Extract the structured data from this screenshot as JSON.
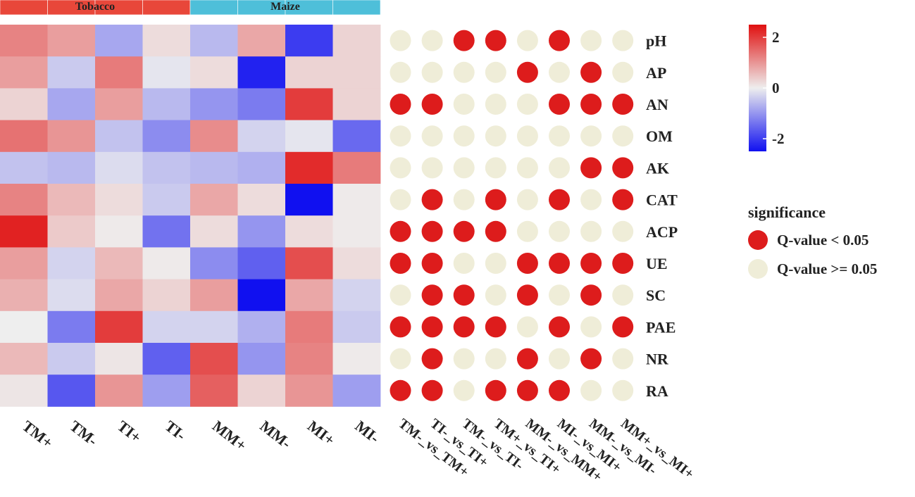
{
  "chart_data": {
    "type": "heatmap",
    "groups": [
      {
        "name": "Tobacco",
        "color": "#e8473a",
        "span": [
          0,
          4
        ]
      },
      {
        "name": "Maize",
        "color": "#4ebfd9",
        "span": [
          4,
          8
        ]
      }
    ],
    "columns": [
      "TM+",
      "TM-",
      "TI+",
      "TI-",
      "MM+",
      "MM-",
      "MI+",
      "MI-"
    ],
    "rows": [
      "pH",
      "AP",
      "AN",
      "OM",
      "AK",
      "CAT",
      "ACP",
      "UE",
      "SC",
      "PAE",
      "NR",
      "RA"
    ],
    "values": [
      [
        1.2,
        0.9,
        -0.8,
        0.2,
        -0.6,
        0.8,
        -2.0,
        0.3
      ],
      [
        0.9,
        -0.4,
        1.3,
        -0.1,
        0.2,
        -2.3,
        0.3,
        0.3
      ],
      [
        0.3,
        -0.8,
        0.9,
        -0.6,
        -1.0,
        -1.3,
        2.0,
        0.3
      ],
      [
        1.4,
        1.0,
        -0.5,
        -1.1,
        1.1,
        -0.3,
        -0.1,
        -1.5
      ],
      [
        -0.5,
        -0.6,
        -0.2,
        -0.5,
        -0.6,
        -0.7,
        2.2,
        1.3
      ],
      [
        1.2,
        0.6,
        0.2,
        -0.4,
        0.8,
        0.2,
        -2.5,
        0.05
      ],
      [
        2.3,
        0.4,
        0.05,
        -1.4,
        0.2,
        -1.0,
        0.2,
        0.05
      ],
      [
        0.9,
        -0.3,
        0.6,
        0.05,
        -1.1,
        -1.6,
        1.8,
        0.2
      ],
      [
        0.7,
        -0.2,
        0.8,
        0.3,
        0.9,
        -2.5,
        0.8,
        -0.3
      ],
      [
        0.0,
        -1.3,
        2.0,
        -0.3,
        -0.3,
        -0.7,
        1.3,
        -0.4
      ],
      [
        0.6,
        -0.4,
        0.1,
        -1.6,
        1.8,
        -1.0,
        1.2,
        0.05
      ],
      [
        0.1,
        -1.7,
        1.0,
        -0.9,
        1.6,
        0.3,
        1.0,
        -0.9
      ]
    ],
    "color_scale": {
      "min": -2.5,
      "max": 2.5,
      "low": "#1010f0",
      "mid": "#eeeeee",
      "high": "#e01010",
      "ticks": [
        2,
        0,
        -2
      ],
      "tick_labels": [
        "2",
        "0",
        "-2"
      ]
    },
    "comparisons": [
      "TM-_vs_TM+",
      "TI-_vs_TI+",
      "TM-_vs_TI-",
      "TM+_vs_TI+",
      "MM-_vs_MM+",
      "MI-_vs_MI+",
      "MM-_vs_MI-",
      "MM+_vs_MI+"
    ],
    "significance": [
      [
        0,
        0,
        1,
        1,
        0,
        1,
        0,
        0
      ],
      [
        0,
        0,
        0,
        0,
        1,
        0,
        1,
        0
      ],
      [
        1,
        1,
        0,
        0,
        0,
        1,
        1,
        1
      ],
      [
        0,
        0,
        0,
        0,
        0,
        0,
        0,
        0
      ],
      [
        0,
        0,
        0,
        0,
        0,
        0,
        1,
        1
      ],
      [
        0,
        1,
        0,
        1,
        0,
        1,
        0,
        1
      ],
      [
        1,
        1,
        1,
        1,
        0,
        0,
        0,
        0
      ],
      [
        1,
        1,
        0,
        0,
        1,
        1,
        1,
        1
      ],
      [
        0,
        1,
        1,
        0,
        1,
        0,
        1,
        0
      ],
      [
        1,
        1,
        1,
        1,
        0,
        1,
        0,
        1
      ],
      [
        0,
        1,
        0,
        0,
        1,
        0,
        1,
        0
      ],
      [
        1,
        1,
        0,
        1,
        1,
        1,
        0,
        0
      ]
    ],
    "legend": {
      "title": "significance",
      "items": [
        {
          "label": "Q-value  <  0.05",
          "color": "#dd1c1c"
        },
        {
          "label": "Q-value  >=  0.05",
          "color": "#efedd8"
        }
      ]
    }
  }
}
